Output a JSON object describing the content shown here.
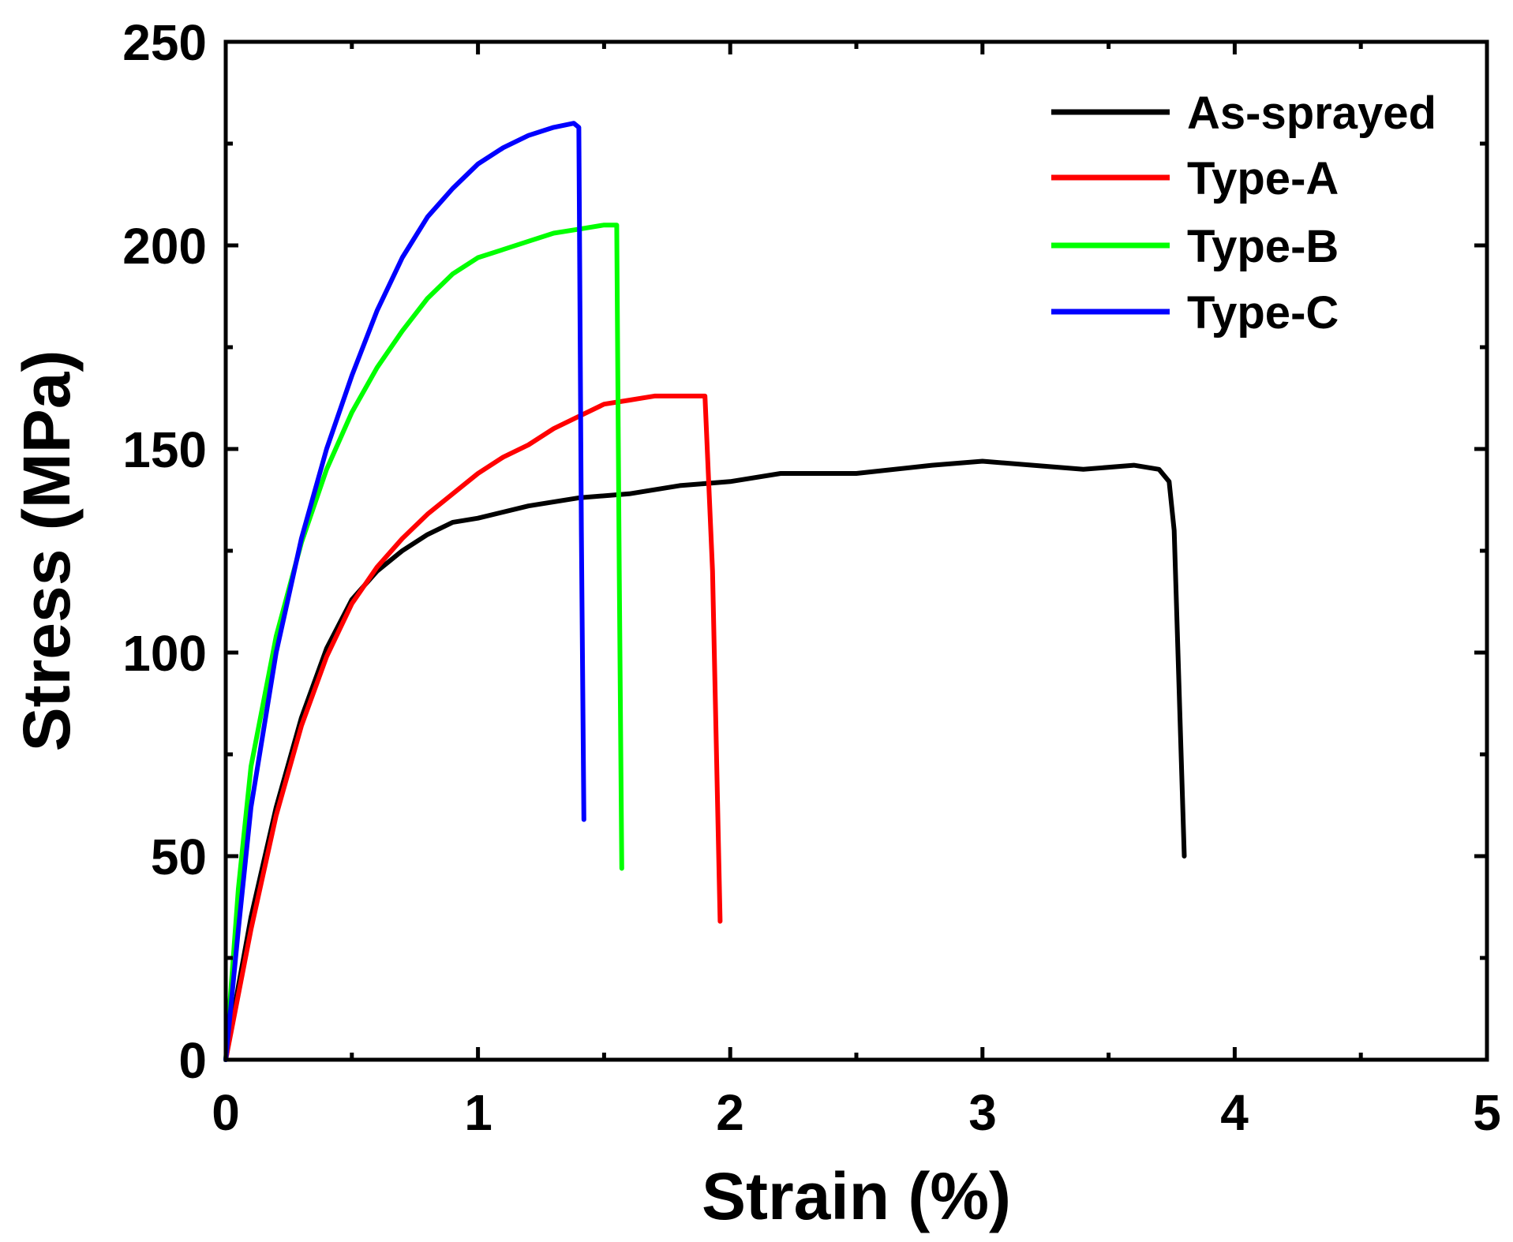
{
  "chart_data": {
    "type": "line",
    "title": "",
    "xlabel": "Strain (%)",
    "ylabel": "Stress (MPa)",
    "xlim": [
      0,
      5
    ],
    "ylim": [
      0,
      250
    ],
    "xticks": [
      0,
      1,
      2,
      3,
      4,
      5
    ],
    "yticks": [
      0,
      50,
      100,
      150,
      200,
      250
    ],
    "xtick_labels": [
      "0",
      "1",
      "2",
      "3",
      "4",
      "5"
    ],
    "ytick_labels": [
      "0",
      "50",
      "100",
      "150",
      "200",
      "250"
    ],
    "grid": false,
    "legend_position": "top-right",
    "series": [
      {
        "name": "As-sprayed",
        "color": "#000000",
        "x": [
          0.0,
          0.05,
          0.1,
          0.2,
          0.3,
          0.4,
          0.5,
          0.6,
          0.7,
          0.8,
          0.9,
          1.0,
          1.2,
          1.4,
          1.6,
          1.8,
          2.0,
          2.2,
          2.5,
          2.8,
          3.0,
          3.2,
          3.4,
          3.6,
          3.7,
          3.74,
          3.76,
          3.8
        ],
        "y": [
          0,
          18,
          35,
          62,
          84,
          101,
          113,
          120,
          125,
          129,
          132,
          133,
          136,
          138,
          139,
          141,
          142,
          144,
          144,
          146,
          147,
          146,
          145,
          146,
          145,
          142,
          130,
          50
        ]
      },
      {
        "name": "Type-A",
        "color": "#ff0000",
        "x": [
          0.0,
          0.05,
          0.1,
          0.2,
          0.3,
          0.4,
          0.5,
          0.6,
          0.7,
          0.8,
          0.9,
          1.0,
          1.1,
          1.2,
          1.3,
          1.4,
          1.5,
          1.6,
          1.7,
          1.8,
          1.9,
          1.93,
          1.96
        ],
        "y": [
          0,
          16,
          32,
          60,
          82,
          99,
          112,
          121,
          128,
          134,
          139,
          144,
          148,
          151,
          155,
          158,
          161,
          162,
          163,
          163,
          163,
          120,
          34
        ]
      },
      {
        "name": "Type-B",
        "color": "#00ff00",
        "x": [
          0.0,
          0.05,
          0.1,
          0.2,
          0.3,
          0.4,
          0.5,
          0.6,
          0.7,
          0.8,
          0.9,
          1.0,
          1.1,
          1.2,
          1.3,
          1.4,
          1.5,
          1.55,
          1.56,
          1.57
        ],
        "y": [
          0,
          42,
          72,
          104,
          127,
          145,
          159,
          170,
          179,
          187,
          193,
          197,
          199,
          201,
          203,
          204,
          205,
          205,
          120,
          47
        ]
      },
      {
        "name": "Type-C",
        "color": "#0000ff",
        "x": [
          0.0,
          0.05,
          0.1,
          0.2,
          0.3,
          0.4,
          0.5,
          0.6,
          0.7,
          0.8,
          0.9,
          1.0,
          1.1,
          1.2,
          1.3,
          1.38,
          1.4,
          1.41,
          1.42
        ],
        "y": [
          0,
          32,
          62,
          100,
          128,
          150,
          168,
          184,
          197,
          207,
          214,
          220,
          224,
          227,
          229,
          230,
          229,
          130,
          59
        ]
      }
    ]
  }
}
